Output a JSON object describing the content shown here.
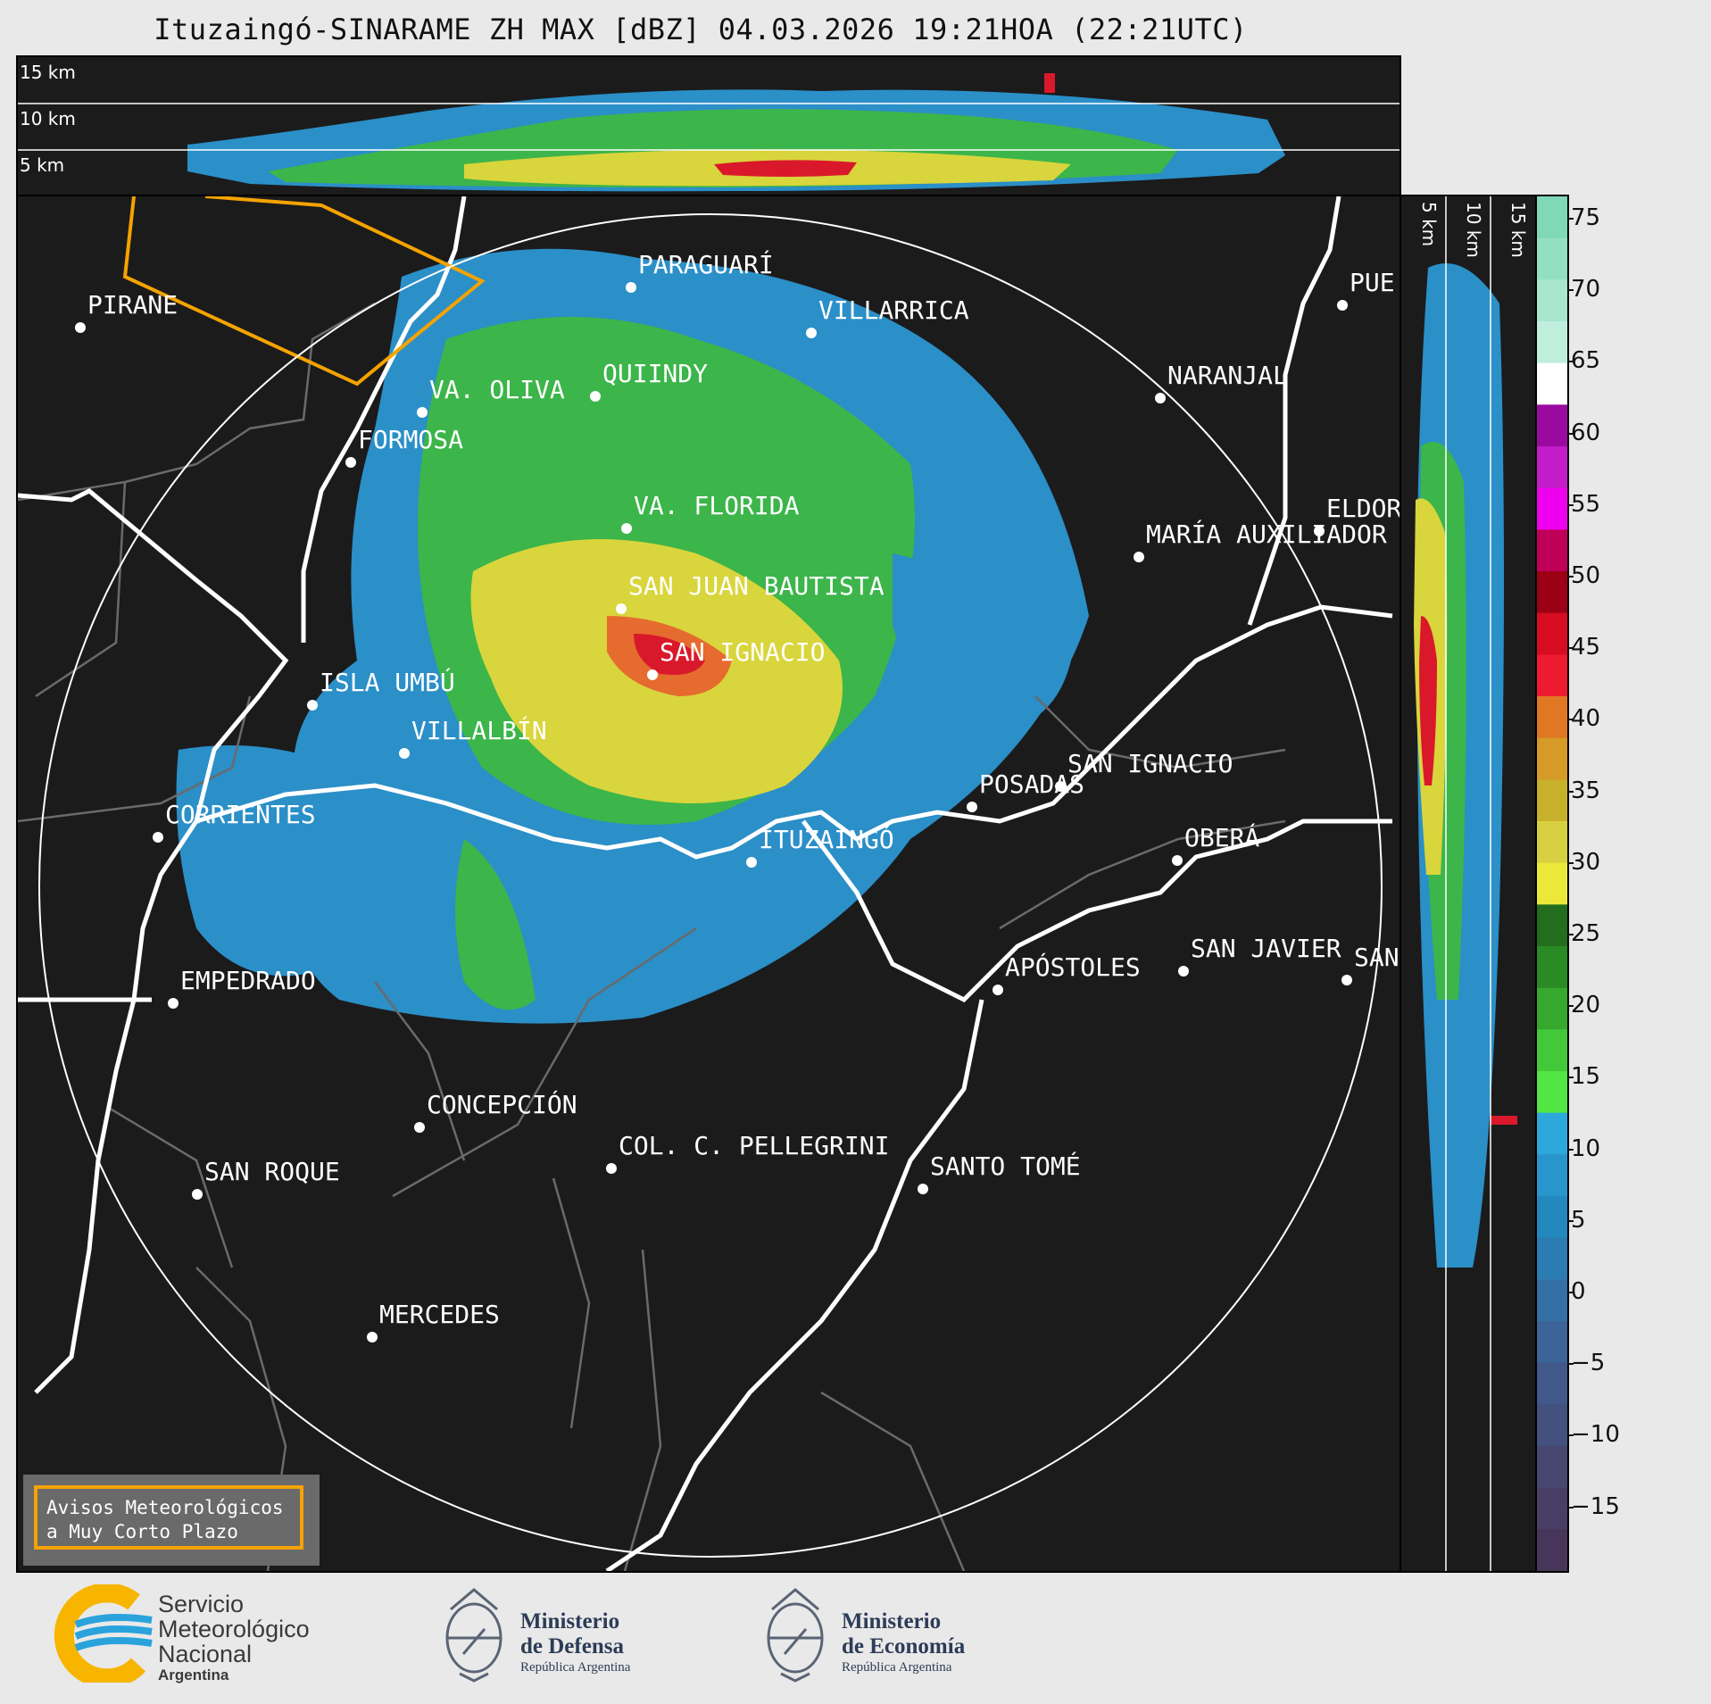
{
  "title": "Ituzaingó-SINARAME ZH MAX [dBZ] 04.03.2026 19:21HOA (22:21UTC)",
  "top_panel": {
    "height_labels": [
      "15 km",
      "10 km",
      "5 km"
    ]
  },
  "side_panel": {
    "height_labels": [
      "5 km",
      "10 km",
      "15 km"
    ]
  },
  "colorbar": {
    "ticks": [
      "75",
      "70",
      "65",
      "60",
      "55",
      "50",
      "45",
      "40",
      "35",
      "30",
      "25",
      "20",
      "15",
      "10",
      "5",
      "0",
      "−5",
      "−10",
      "−15"
    ]
  },
  "cities": [
    {
      "name": "PARAGUARÍ"
    },
    {
      "name": "VILLARRICA"
    },
    {
      "name": "PIRANE"
    },
    {
      "name": "QUIINDY"
    },
    {
      "name": "VA. OLIVA"
    },
    {
      "name": "NARANJAL"
    },
    {
      "name": "FORMOSA"
    },
    {
      "name": "PUE"
    },
    {
      "name": "VA. FLORIDA"
    },
    {
      "name": "ELDOR"
    },
    {
      "name": "MARÍA AUXILIADOR"
    },
    {
      "name": "SAN JUAN BAUTISTA"
    },
    {
      "name": "SAN IGNACIO"
    },
    {
      "name": "ISLA UMBÚ"
    },
    {
      "name": "VILLALBÍN"
    },
    {
      "name": "SAN IGNACIO"
    },
    {
      "name": "POSADAS"
    },
    {
      "name": "CORRIENTES"
    },
    {
      "name": "OBERÁ"
    },
    {
      "name": "ITUZAINGÓ"
    },
    {
      "name": "APÓSTOLES"
    },
    {
      "name": "SAN JAVIER"
    },
    {
      "name": "SAN"
    },
    {
      "name": "EMPEDRADO"
    },
    {
      "name": "CONCEPCIÓN"
    },
    {
      "name": "COL. C. PELLEGRINI"
    },
    {
      "name": "SANTO TOMÉ"
    },
    {
      "name": "SAN ROQUE"
    },
    {
      "name": "MERCEDES"
    }
  ],
  "warning_box": {
    "line1": "Avisos Meteorológicos",
    "line2": "a Muy Corto Plazo"
  },
  "logos": {
    "smn": {
      "line1": "Servicio",
      "line2": "Meteorológico",
      "line3": "Nacional",
      "line4": "Argentina"
    },
    "defensa": {
      "line1": "Ministerio",
      "line2": "de Defensa",
      "line3": "República Argentina"
    },
    "economia": {
      "line1": "Ministerio",
      "line2": "de Economía",
      "line3": "República Argentina"
    }
  },
  "colors": {
    "background": "#1b1b1b",
    "range_ring": "#ffffff",
    "alert_polygon": "#f5a300",
    "border": "#ffffff",
    "smn_blue": "#2aa3dc",
    "smn_yellow": "#f7b500"
  }
}
